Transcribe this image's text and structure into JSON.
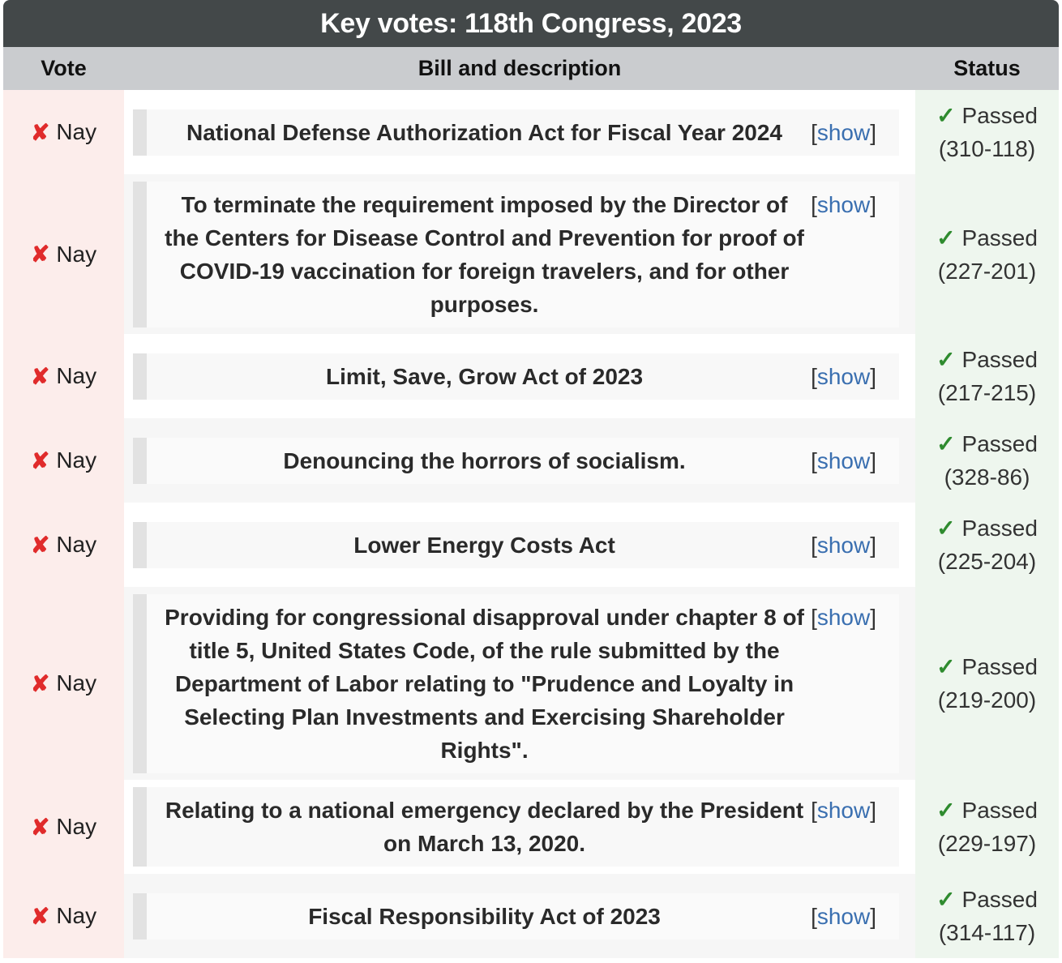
{
  "title": "Key votes: 118th Congress, 2023",
  "headers": {
    "vote": "Vote",
    "bill": "Bill and description",
    "status": "Status"
  },
  "colors": {
    "nay": "#e02b2b",
    "passed": "#2e8b2e",
    "link": "#3a6fb0",
    "title_bg": "#434849"
  },
  "show_label": "show",
  "rows": [
    {
      "vote": "Nay",
      "bill": "National Defense Authorization Act for Fiscal Year 2024",
      "status": "Passed",
      "tally": "(310-118)"
    },
    {
      "vote": "Nay",
      "bill": "To terminate the requirement imposed by the Director of the Centers for Disease Control and Prevention for proof of COVID-19 vaccination for foreign travelers, and for other purposes.",
      "status": "Passed",
      "tally": "(227-201)"
    },
    {
      "vote": "Nay",
      "bill": "Limit, Save, Grow Act of 2023",
      "status": "Passed",
      "tally": "(217-215)"
    },
    {
      "vote": "Nay",
      "bill": "Denouncing the horrors of socialism.",
      "status": "Passed",
      "tally": "(328-86)"
    },
    {
      "vote": "Nay",
      "bill": "Lower Energy Costs Act",
      "status": "Passed",
      "tally": "(225-204)"
    },
    {
      "vote": "Nay",
      "bill": "Providing for congressional disapproval under chapter 8 of title 5, United States Code, of the rule submitted by the Department of Labor relating to \"Prudence and Loyalty in Selecting Plan Investments and Exercising Shareholder Rights\".",
      "status": "Passed",
      "tally": "(219-200)"
    },
    {
      "vote": "Nay",
      "bill": "Relating to a national emergency declared by the President on March 13, 2020.",
      "status": "Passed",
      "tally": "(229-197)"
    },
    {
      "vote": "Nay",
      "bill": "Fiscal Responsibility Act of 2023",
      "status": "Passed",
      "tally": "(314-117)"
    }
  ]
}
